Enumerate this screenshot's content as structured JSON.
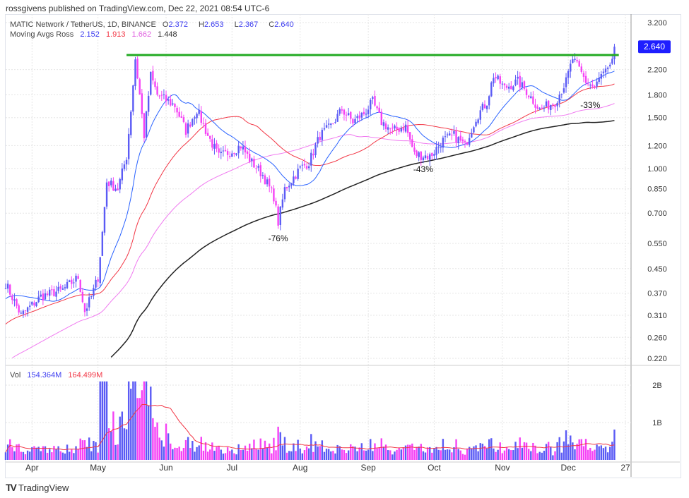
{
  "publisher_line": "rossgivens published on TradingView.com, Dec 22, 2021 08:54 UTC-6",
  "symbol": {
    "name": "MATIC Network / TetherUS, 1D, BINANCE",
    "o_label": "O",
    "o": "2.372",
    "h_label": "H",
    "h": "2.653",
    "l_label": "L",
    "l": "2.367",
    "c_label": "C",
    "c": "2.640"
  },
  "ma_legend": {
    "label": "Moving Avgs Ross",
    "values": [
      "2.152",
      "1.913",
      "1.662",
      "1.448"
    ]
  },
  "vol_legend": {
    "label": "Vol",
    "v1": "154.364M",
    "v2": "164.499M"
  },
  "footer": {
    "logo": "TV",
    "brand": "TradingView"
  },
  "colors": {
    "up": "#5b5bf5",
    "down": "#f542f5",
    "ma1": "#2962ff",
    "ma2": "#f23645",
    "ma3": "#f07af0",
    "ma4": "#222222",
    "resistance": "#22aa22",
    "last_price_bg": "#1e1eff"
  },
  "chart_data": {
    "type": "candlestick",
    "scale": "log",
    "ylim": [
      0.22,
      3.2
    ],
    "y_ticks": [
      "3.200",
      "2.200",
      "1.800",
      "1.500",
      "1.200",
      "1.000",
      "0.850",
      "0.700",
      "0.550",
      "0.450",
      "0.370",
      "0.310",
      "0.260",
      "0.220"
    ],
    "x_ticks": [
      "Apr",
      "May",
      "Jun",
      "Jul",
      "Aug",
      "Sep",
      "Oct",
      "Nov",
      "Dec",
      "27"
    ],
    "last_price": "2.640",
    "vol_ticks": [
      "2B",
      "1B"
    ],
    "resistance_level": 2.47,
    "close_keypoints_days_from_mar20": [
      [
        0,
        0.4
      ],
      [
        7,
        0.31
      ],
      [
        16,
        0.36
      ],
      [
        26,
        0.38
      ],
      [
        33,
        0.42
      ],
      [
        36,
        0.32
      ],
      [
        39,
        0.36
      ],
      [
        42,
        0.42
      ],
      [
        44,
        0.6
      ],
      [
        46,
        0.9
      ],
      [
        51,
        0.85
      ],
      [
        55,
        1.1
      ],
      [
        57,
        1.6
      ],
      [
        59,
        2.4
      ],
      [
        61,
        1.8
      ],
      [
        63,
        1.3
      ],
      [
        66,
        2.1
      ],
      [
        69,
        1.8
      ],
      [
        77,
        1.65
      ],
      [
        82,
        1.35
      ],
      [
        87,
        1.6
      ],
      [
        92,
        1.3
      ],
      [
        97,
        1.1
      ],
      [
        103,
        1.15
      ],
      [
        107,
        1.2
      ],
      [
        112,
        1.05
      ],
      [
        117,
        0.95
      ],
      [
        122,
        0.8
      ],
      [
        124,
        0.65
      ],
      [
        127,
        0.85
      ],
      [
        134,
        1.0
      ],
      [
        138,
        1.05
      ],
      [
        143,
        1.3
      ],
      [
        148,
        1.4
      ],
      [
        153,
        1.6
      ],
      [
        158,
        1.45
      ],
      [
        163,
        1.55
      ],
      [
        167,
        1.7
      ],
      [
        171,
        1.45
      ],
      [
        176,
        1.35
      ],
      [
        182,
        1.4
      ],
      [
        186,
        1.12
      ],
      [
        193,
        1.1
      ],
      [
        199,
        1.25
      ],
      [
        204,
        1.3
      ],
      [
        209,
        1.2
      ],
      [
        214,
        1.5
      ],
      [
        219,
        1.7
      ],
      [
        222,
        2.1
      ],
      [
        227,
        1.9
      ],
      [
        233,
        2.0
      ],
      [
        237,
        1.85
      ],
      [
        243,
        1.6
      ],
      [
        250,
        1.7
      ],
      [
        255,
        2.0
      ],
      [
        258,
        2.4
      ],
      [
        261,
        2.2
      ],
      [
        264,
        2.0
      ],
      [
        268,
        1.9
      ],
      [
        271,
        2.1
      ],
      [
        275,
        2.2
      ],
      [
        277,
        2.64
      ]
    ],
    "annotations": [
      {
        "text": "-76%",
        "day": 124,
        "price": 0.56
      },
      {
        "text": "-43%",
        "day": 190,
        "price": 0.97
      },
      {
        "text": "-33%",
        "day": 266,
        "price": 1.62
      }
    ]
  }
}
